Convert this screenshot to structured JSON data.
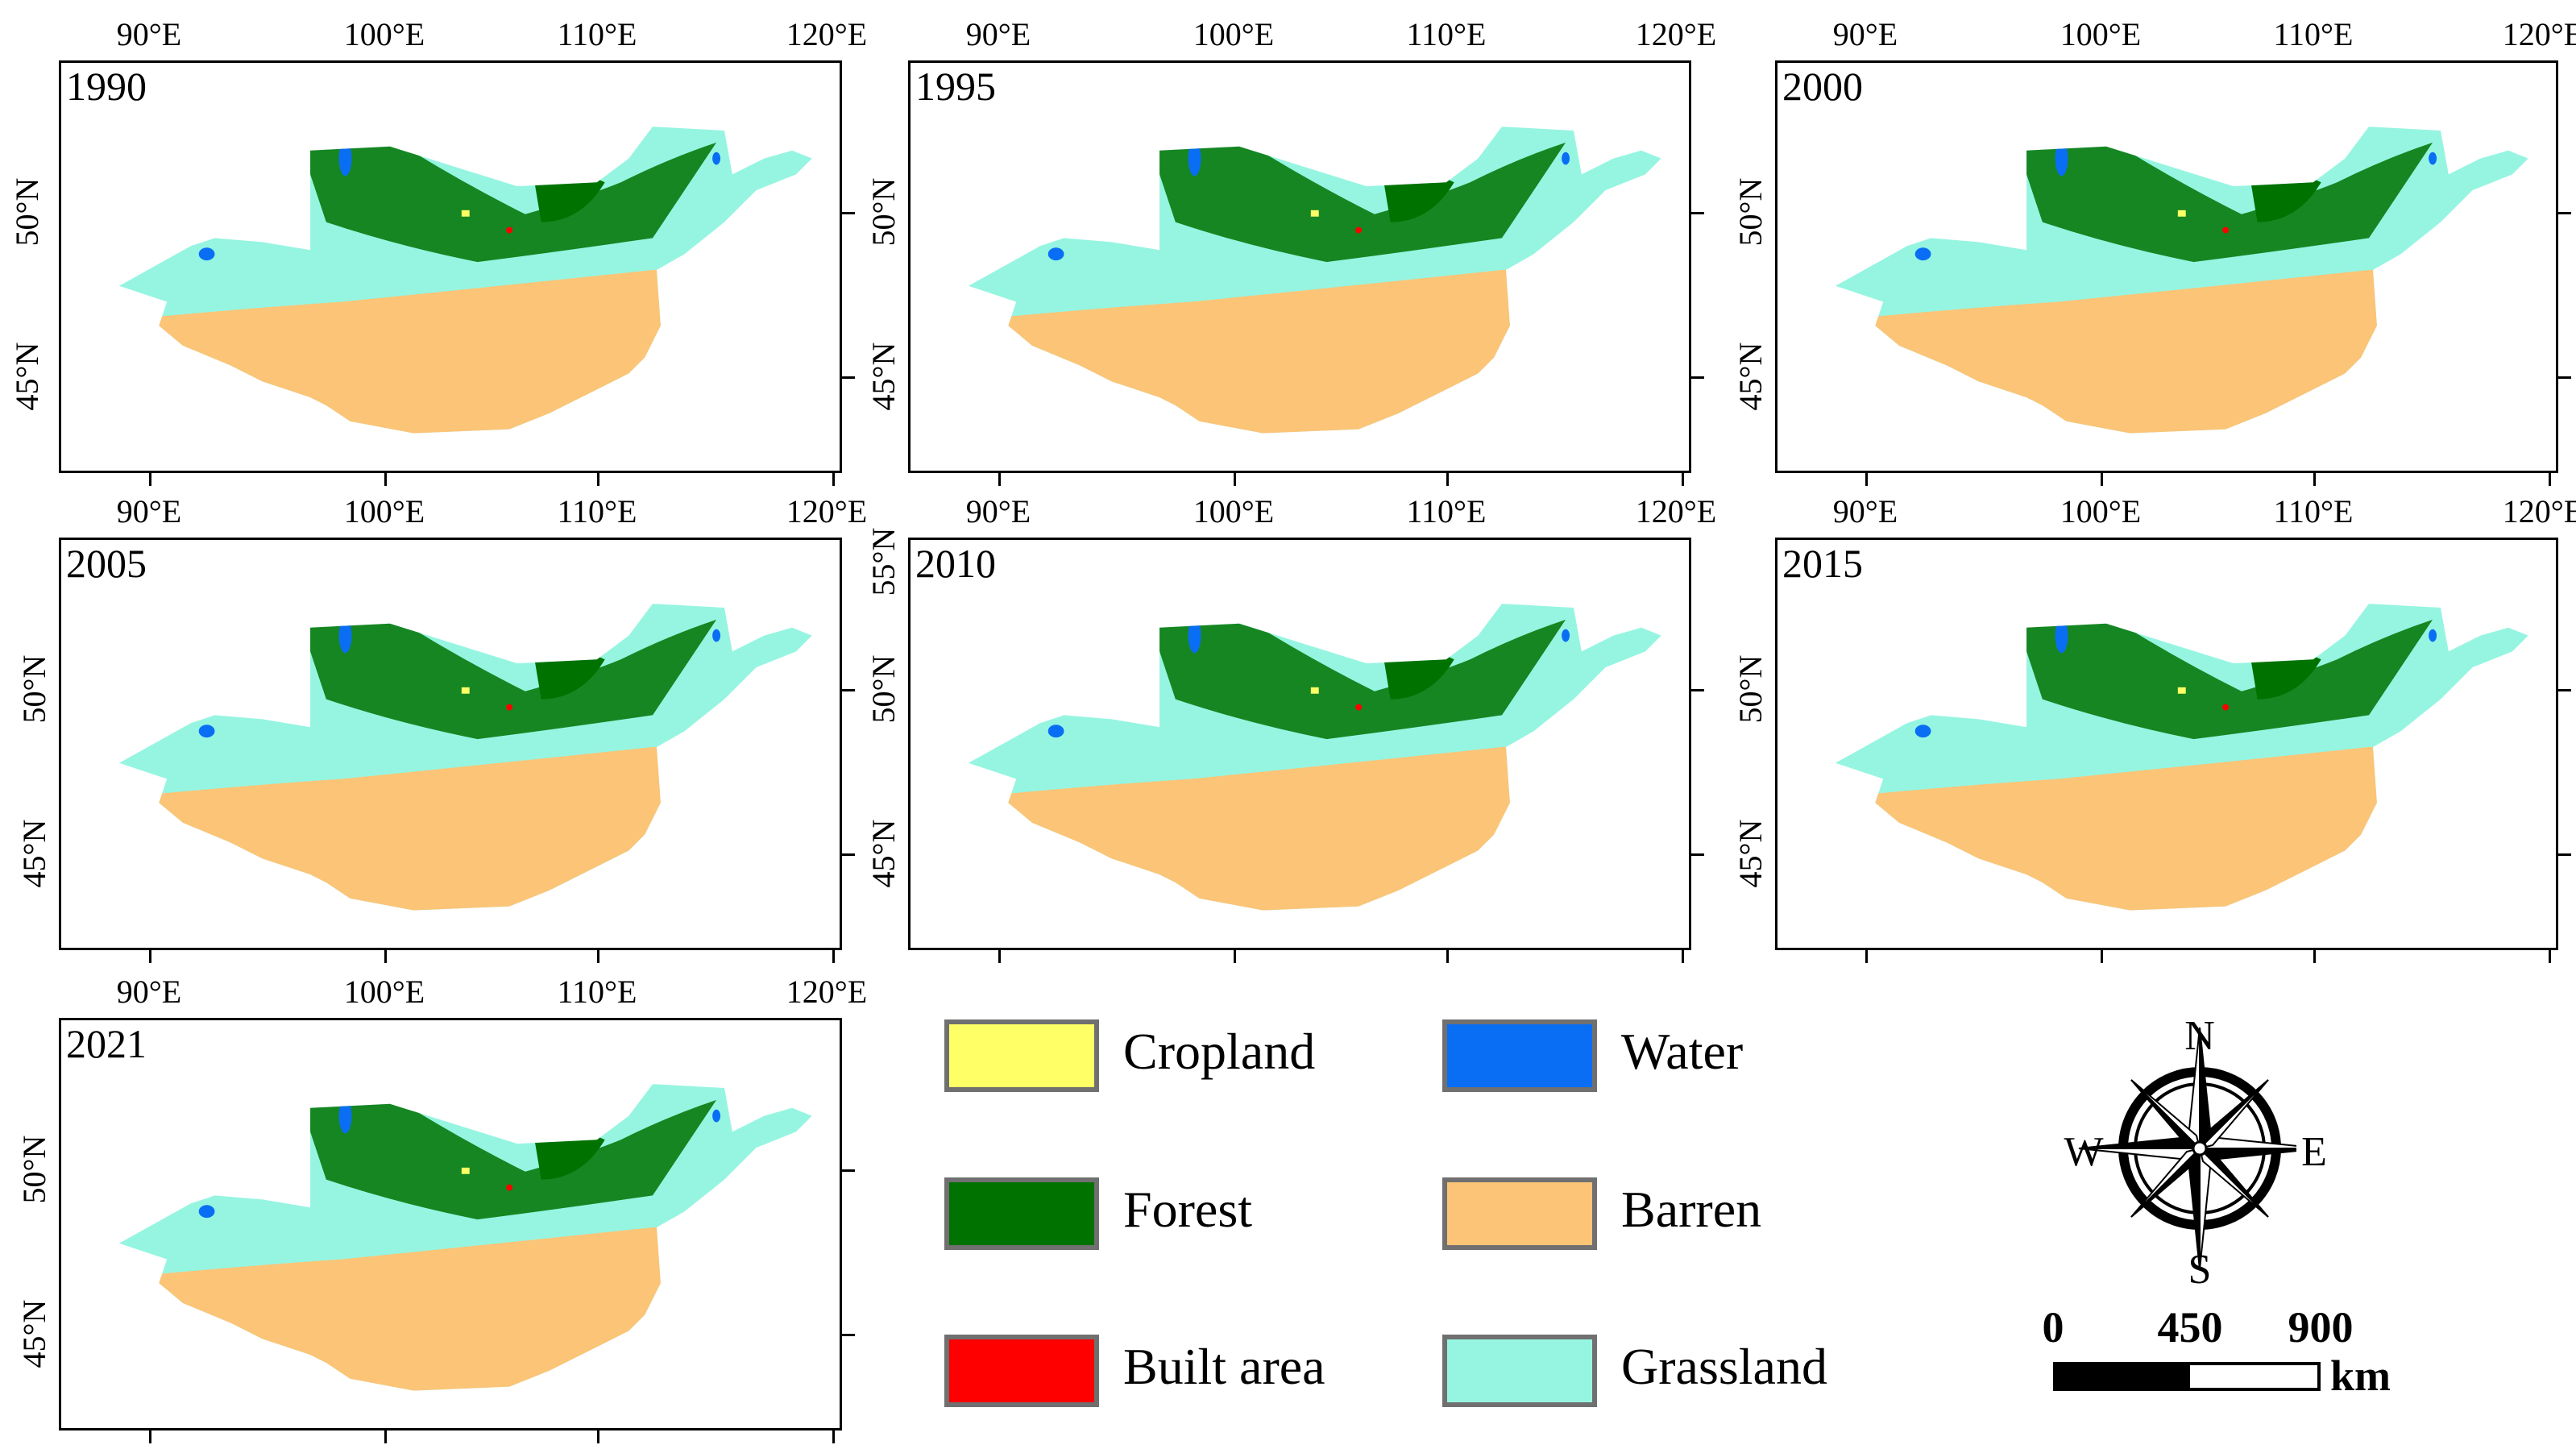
{
  "panels": [
    {
      "year": "1990"
    },
    {
      "year": "1995"
    },
    {
      "year": "2000"
    },
    {
      "year": "2005"
    },
    {
      "year": "2010"
    },
    {
      "year": "2015"
    },
    {
      "year": "2021"
    }
  ],
  "axes": {
    "x_labels": [
      "90°E",
      "100°E",
      "110°E",
      "120°E"
    ],
    "y_labels": [
      "55°N",
      "50°N",
      "45°N"
    ]
  },
  "legend": [
    {
      "label": "Cropland",
      "color": "#ffff66"
    },
    {
      "label": "Water",
      "color": "#0a6ef5"
    },
    {
      "label": "Forest",
      "color": "#007200"
    },
    {
      "label": "Barren",
      "color": "#fbc477"
    },
    {
      "label": "Built area",
      "color": "#ff0000"
    },
    {
      "label": "Grassland",
      "color": "#96f5e1"
    }
  ],
  "compass": {
    "north": "N",
    "south": "S",
    "east": "E",
    "west": "W"
  },
  "scale_bar": {
    "ticks": [
      "0",
      "450",
      "900"
    ],
    "unit": "km"
  }
}
